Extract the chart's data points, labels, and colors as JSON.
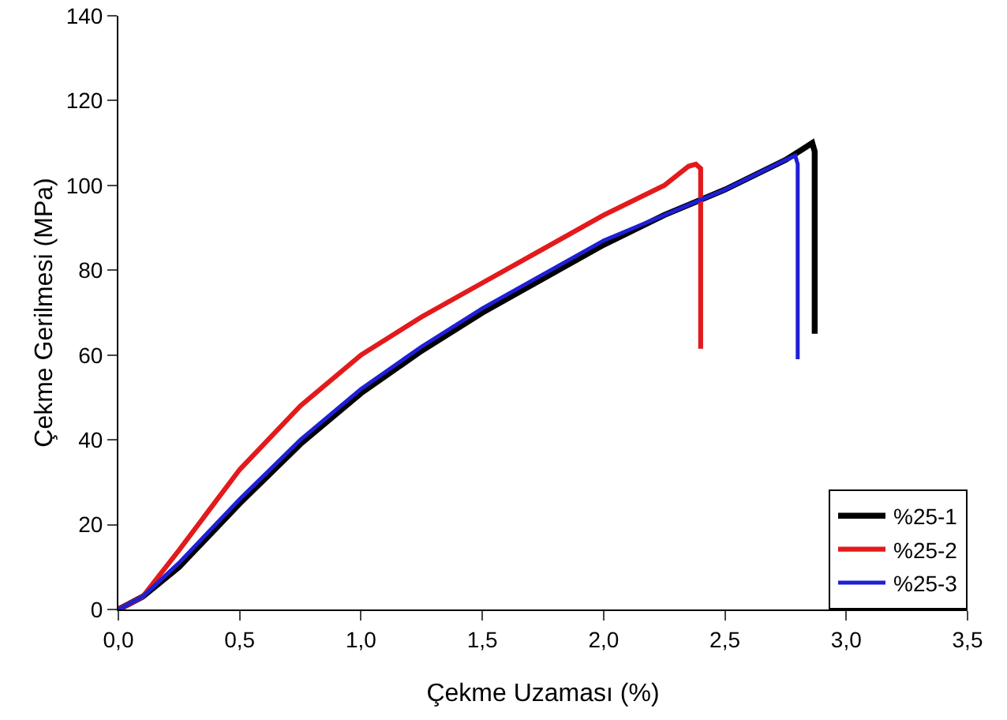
{
  "chart_data": {
    "type": "line",
    "xlabel": "Çekme Uzaması (%)",
    "ylabel": "Çekme Gerilmesi (MPa)",
    "series": [
      {
        "name": "%25-1",
        "color": "#000000",
        "x": [
          0,
          0.1,
          0.25,
          0.5,
          0.75,
          1.0,
          1.25,
          1.5,
          1.75,
          2.0,
          2.25,
          2.5,
          2.75,
          2.86,
          2.87,
          2.87
        ],
        "values": [
          0,
          3,
          10,
          25,
          39,
          51,
          61,
          70,
          78,
          86,
          93,
          99,
          106,
          110,
          108,
          65
        ]
      },
      {
        "name": "%25-2",
        "color": "#e31a1c",
        "x": [
          0,
          0.1,
          0.25,
          0.5,
          0.75,
          1.0,
          1.25,
          1.5,
          1.75,
          2.0,
          2.25,
          2.35,
          2.38,
          2.4,
          2.4
        ],
        "values": [
          0,
          3,
          14,
          33,
          48,
          60,
          69,
          77,
          85,
          93,
          100,
          104.5,
          105,
          104,
          61.5
        ]
      },
      {
        "name": "%25-3",
        "color": "#1f1fd6",
        "x": [
          0,
          0.1,
          0.25,
          0.5,
          0.75,
          1.0,
          1.25,
          1.5,
          1.75,
          2.0,
          2.25,
          2.5,
          2.75,
          2.79,
          2.8,
          2.8
        ],
        "values": [
          0,
          3,
          11,
          26,
          40,
          52,
          62,
          71,
          79,
          87,
          93,
          99,
          106,
          107,
          105,
          59
        ]
      }
    ],
    "xlim": [
      0,
      3.5
    ],
    "xticks": [
      {
        "value": 0,
        "label": "0,0"
      },
      {
        "value": 0.5,
        "label": "0,5"
      },
      {
        "value": 1,
        "label": "1,0"
      },
      {
        "value": 1.5,
        "label": "1,5"
      },
      {
        "value": 2,
        "label": "2,0"
      },
      {
        "value": 2.5,
        "label": "2,5"
      },
      {
        "value": 3,
        "label": "3,0"
      },
      {
        "value": 3.5,
        "label": "3,5"
      }
    ],
    "ylim": [
      0,
      140
    ],
    "yticks": [
      0,
      20,
      40,
      60,
      80,
      100,
      120,
      140
    ],
    "grid": false,
    "legend": "bottom right",
    "marker": "none",
    "line_style": "solid"
  }
}
